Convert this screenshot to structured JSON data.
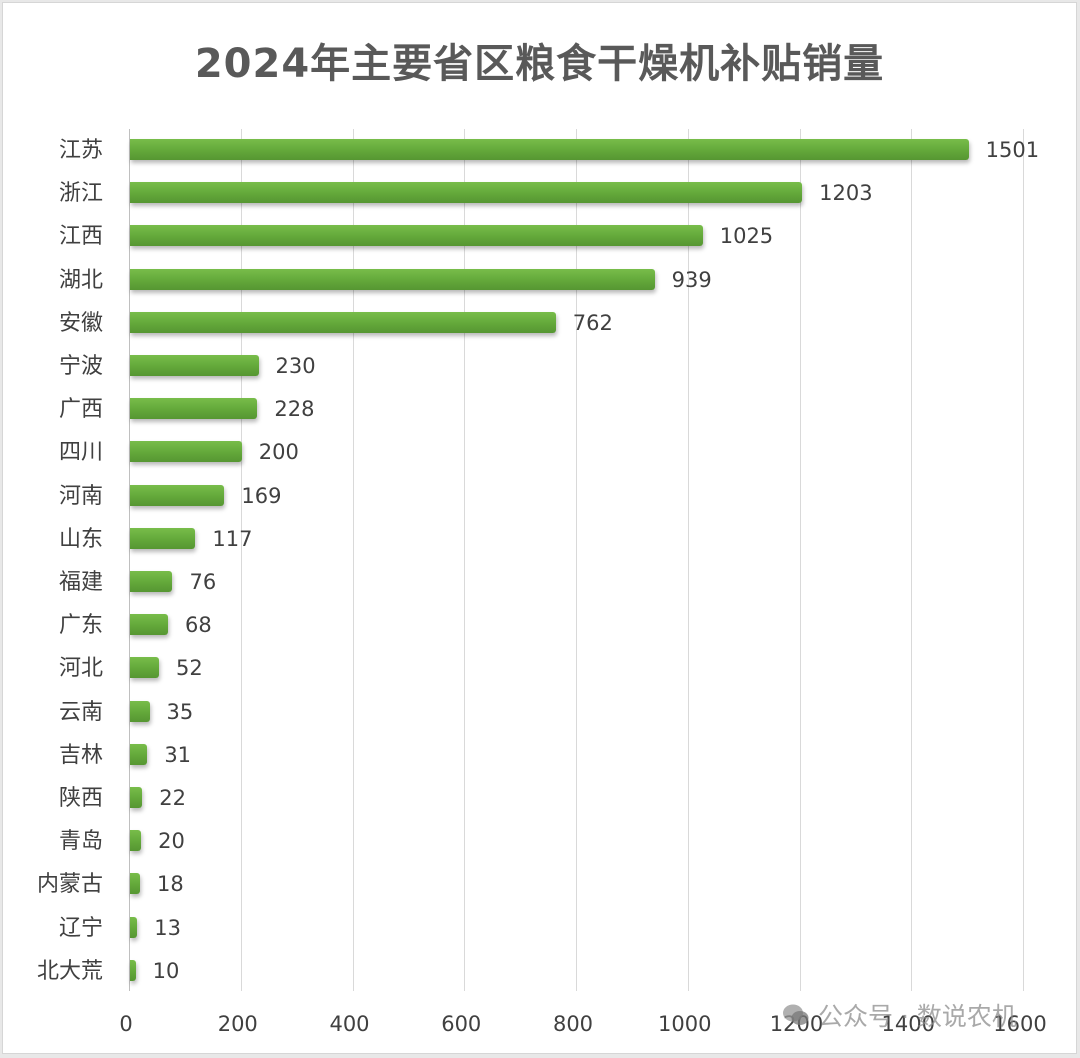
{
  "chart_data": {
    "type": "bar",
    "orientation": "horizontal",
    "title": "2024年主要省区粮食干燥机补贴销量",
    "xlabel": "",
    "ylabel": "",
    "xlim": [
      0,
      1600
    ],
    "xticks": [
      "0",
      "200",
      "400",
      "600",
      "800",
      "1000",
      "1200",
      "1400",
      "1600"
    ],
    "grid": true,
    "legend": null,
    "bar_color": "#6ab23f",
    "categories": [
      "江苏",
      "浙江",
      "江西",
      "湖北",
      "安徽",
      "宁波",
      "广西",
      "四川",
      "河南",
      "山东",
      "福建",
      "广东",
      "河北",
      "云南",
      "吉林",
      "陕西",
      "青岛",
      "内蒙古",
      "辽宁",
      "北大荒"
    ],
    "values": [
      1501,
      1203,
      1025,
      939,
      762,
      230,
      228,
      200,
      169,
      117,
      76,
      68,
      52,
      35,
      31,
      22,
      20,
      18,
      13,
      10
    ],
    "data_labels": true
  },
  "watermark": {
    "icon": "wechat-icon",
    "text": "公众号 · 数说农机"
  }
}
